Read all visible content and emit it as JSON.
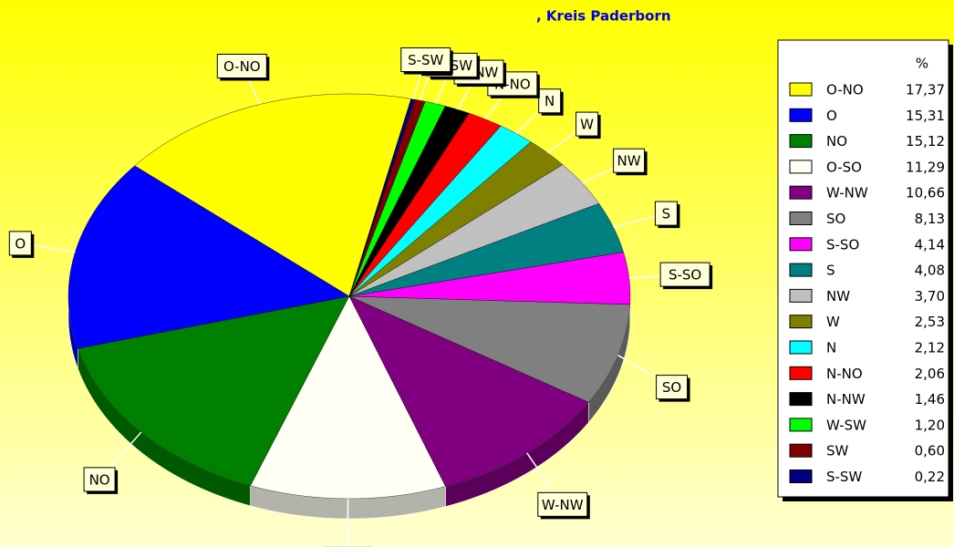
{
  "chart_data": {
    "type": "pie",
    "title": ", Kreis Paderborn",
    "legend_title": "%",
    "categories": [
      "O-NO",
      "O",
      "NO",
      "O-SO",
      "W-NW",
      "SO",
      "S-SO",
      "S",
      "NW",
      "W",
      "N",
      "N-NO",
      "N-NW",
      "W-SW",
      "SW",
      "S-SW"
    ],
    "values": [
      17.37,
      15.31,
      15.12,
      11.29,
      10.66,
      8.13,
      4.14,
      4.08,
      3.7,
      2.53,
      2.12,
      2.06,
      1.46,
      1.2,
      0.6,
      0.22
    ],
    "value_labels": [
      "17,37",
      "15,31",
      "15,12",
      "11,29",
      "10,66",
      "8,13",
      "4,14",
      "4,08",
      "3,70",
      "2,53",
      "2,12",
      "2,06",
      "1,46",
      "1,20",
      "0,60",
      "0,22"
    ],
    "colors": [
      "#ffff00",
      "#0000ff",
      "#008000",
      "#fffff4",
      "#800080",
      "#808080",
      "#ff00ff",
      "#008080",
      "#c0c0c0",
      "#808000",
      "#00ffff",
      "#ff0000",
      "#000000",
      "#00ff00",
      "#800000",
      "#000080"
    ],
    "legend": "right"
  }
}
